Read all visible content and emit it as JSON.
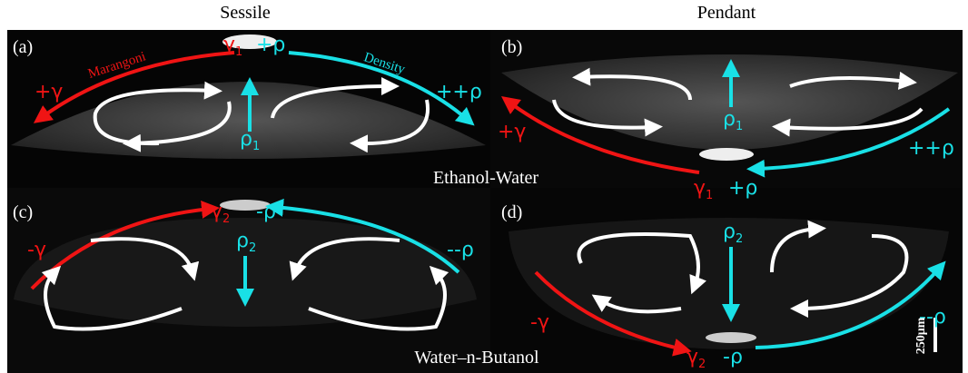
{
  "column_headers": [
    "Sessile",
    "Pendant"
  ],
  "panels": [
    {
      "label": "(a)",
      "marangoni": "Marangoni",
      "density": "Density",
      "annotations": [
        {
          "base": "γ",
          "sub": "1"
        },
        {
          "base": "+ρ"
        },
        {
          "base": "+γ"
        },
        {
          "base": "++ρ"
        },
        {
          "base": "ρ",
          "sub": "1"
        }
      ]
    },
    {
      "label": "(b)",
      "annotations": [
        {
          "base": "+γ"
        },
        {
          "base": "ρ",
          "sub": "1"
        },
        {
          "base": "++ρ"
        },
        {
          "base": "γ",
          "sub": "1"
        },
        {
          "base": "+ρ"
        }
      ]
    },
    {
      "label": "(c)",
      "annotations": [
        {
          "base": "γ",
          "sub": "2"
        },
        {
          "base": "-ρ"
        },
        {
          "base": "-γ"
        },
        {
          "base": "ρ",
          "sub": "2"
        },
        {
          "base": "--ρ"
        }
      ]
    },
    {
      "label": "(d)",
      "annotations": [
        {
          "base": "ρ",
          "sub": "2"
        },
        {
          "base": "-γ"
        },
        {
          "base": "--ρ"
        },
        {
          "base": "γ",
          "sub": "2"
        },
        {
          "base": "-ρ"
        }
      ]
    }
  ],
  "fluid_labels": [
    "Ethanol-Water",
    "Water–n-Butanol"
  ],
  "scale_bar": "250μm"
}
